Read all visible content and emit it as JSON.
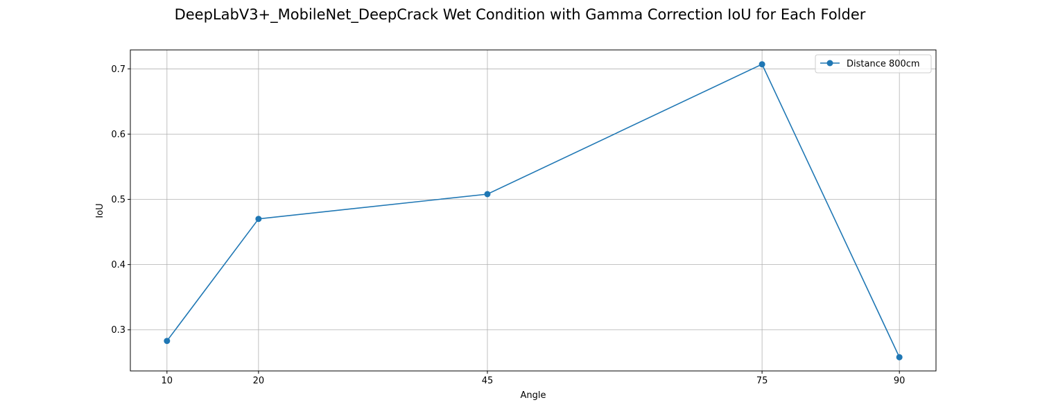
{
  "chart_data": {
    "type": "line",
    "title": "DeepLabV3+_MobileNet_DeepCrack Wet Condition with Gamma Correction IoU for Each Folder",
    "xlabel": "Angle",
    "ylabel": "IoU",
    "x": [
      10,
      20,
      45,
      75,
      90
    ],
    "x_ticks": [
      "10",
      "20",
      "45",
      "75",
      "90"
    ],
    "xlim": [
      6,
      94
    ],
    "y_ticks": [
      0.3,
      0.4,
      0.5,
      0.6,
      0.7
    ],
    "y_tick_labels": [
      "0.3",
      "0.4",
      "0.5",
      "0.6",
      "0.7"
    ],
    "ylim": [
      0.237,
      0.729
    ],
    "grid": true,
    "legend_position": "top-right",
    "series": [
      {
        "name": "Distance 800cm",
        "color": "#1f77b4",
        "marker": "circle",
        "values": [
          0.283,
          0.47,
          0.508,
          0.707,
          0.258
        ]
      }
    ]
  }
}
